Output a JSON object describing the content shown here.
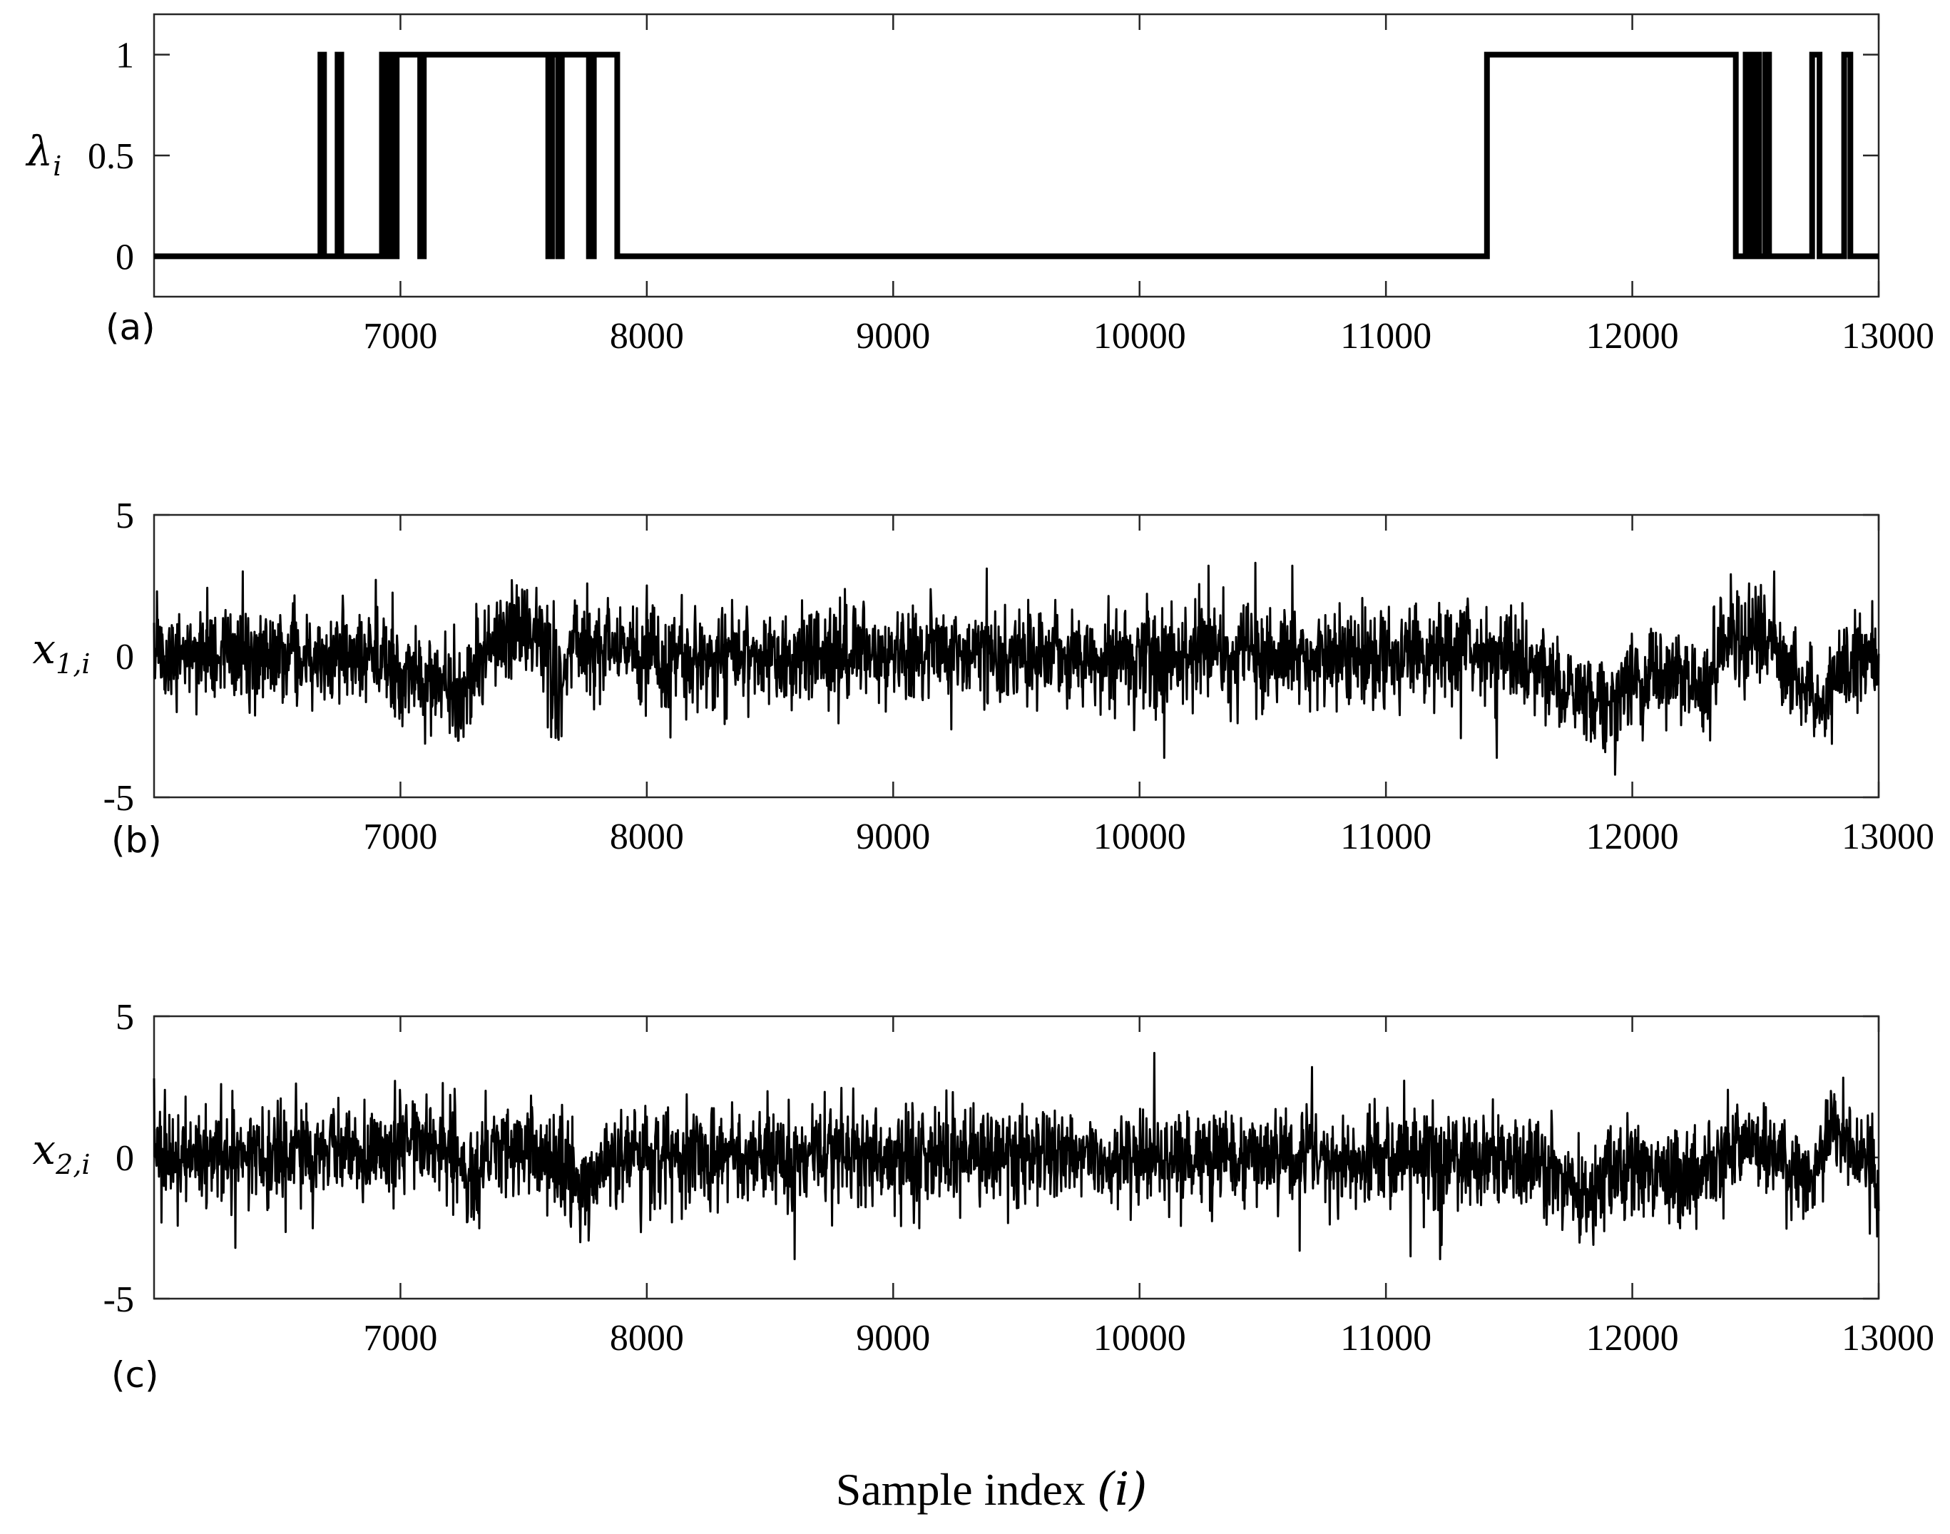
{
  "chart_data": [
    {
      "type": "line",
      "panel_label": "(a)",
      "ylabel_base": "λ",
      "ylabel_sub": "i",
      "xlim": [
        6000,
        13000
      ],
      "ylim": [
        -0.2,
        1.2
      ],
      "xticks": [
        7000,
        8000,
        9000,
        10000,
        11000,
        12000,
        13000
      ],
      "yticks": [
        0,
        0.5,
        1
      ],
      "ytick_labels": [
        "0",
        "0.5",
        "1"
      ],
      "xtick_labels": [
        "7000",
        "8000",
        "9000",
        "10000",
        "11000",
        "12000",
        "13000"
      ],
      "line_color": "#000000",
      "series": [
        {
          "x": [
            6000,
            6675,
            6675,
            6690,
            6690,
            6745,
            6745,
            6760,
            6760,
            6925,
            6925,
            6935,
            6935,
            6945,
            6945,
            6965,
            6965,
            6985,
            6985,
            7080,
            7080,
            7095,
            7095,
            7600,
            7600,
            7615,
            7615,
            7640,
            7640,
            7655,
            7655,
            7765,
            7765,
            7785,
            7785,
            7880,
            7880,
            11410,
            11410,
            12420,
            12420,
            12460,
            12460,
            12480,
            12480,
            12500,
            12500,
            12515,
            12515,
            12540,
            12540,
            12555,
            12555,
            12730,
            12730,
            12760,
            12760,
            12860,
            12860,
            12885,
            12885,
            13000
          ],
          "y": [
            0,
            0,
            1,
            1,
            0,
            0,
            1,
            1,
            0,
            0,
            1,
            1,
            0,
            0,
            1,
            1,
            0,
            0,
            1,
            1,
            0,
            0,
            1,
            1,
            0,
            0,
            1,
            1,
            0,
            0,
            1,
            1,
            0,
            0,
            1,
            1,
            0,
            0,
            1,
            1,
            0,
            0,
            1,
            1,
            0,
            0,
            1,
            1,
            0,
            0,
            1,
            1,
            0,
            0,
            1,
            1,
            0,
            0,
            1,
            1,
            0,
            0
          ]
        }
      ]
    },
    {
      "type": "line",
      "panel_label": "(b)",
      "ylabel_base": "x",
      "ylabel_sub": "1,i",
      "xlim": [
        6000,
        13000
      ],
      "ylim": [
        -5,
        5
      ],
      "xticks": [
        7000,
        8000,
        9000,
        10000,
        11000,
        12000,
        13000
      ],
      "yticks": [
        -5,
        0,
        5
      ],
      "ytick_labels": [
        "-5",
        "0",
        "5"
      ],
      "xtick_labels": [
        "7000",
        "8000",
        "9000",
        "10000",
        "11000",
        "12000",
        "13000"
      ],
      "line_color": "#000000",
      "noise_level": 0.85,
      "trend": [
        [
          6000,
          0.1
        ],
        [
          6900,
          0.0
        ],
        [
          7000,
          -0.9
        ],
        [
          7100,
          -0.6
        ],
        [
          7250,
          -1.4
        ],
        [
          7350,
          0.2
        ],
        [
          7450,
          0.7
        ],
        [
          7550,
          1.1
        ],
        [
          7640,
          -1.2
        ],
        [
          7700,
          0.3
        ],
        [
          7800,
          0.6
        ],
        [
          7880,
          0.0
        ],
        [
          11400,
          0.0
        ],
        [
          11600,
          -0.4
        ],
        [
          11900,
          -1.8
        ],
        [
          12050,
          -0.6
        ],
        [
          12250,
          -1.0
        ],
        [
          12300,
          -1.6
        ],
        [
          12350,
          0.3
        ],
        [
          12500,
          1.1
        ],
        [
          12650,
          -0.6
        ],
        [
          12750,
          -1.6
        ],
        [
          12850,
          -0.4
        ],
        [
          13000,
          -0.2
        ]
      ],
      "extremes": [
        [
          6360,
          3.0
        ],
        [
          6900,
          2.7
        ],
        [
          7100,
          -3.1
        ],
        [
          8000,
          2.5
        ],
        [
          9380,
          3.1
        ],
        [
          10100,
          -3.6
        ],
        [
          10280,
          3.2
        ],
        [
          10470,
          3.3
        ],
        [
          10620,
          3.2
        ],
        [
          11450,
          -3.6
        ],
        [
          11890,
          -3.4
        ],
        [
          12400,
          2.9
        ]
      ]
    },
    {
      "type": "line",
      "panel_label": "(c)",
      "ylabel_base": "x",
      "ylabel_sub": "2,i",
      "xlim": [
        6000,
        13000
      ],
      "ylim": [
        -5,
        5
      ],
      "xticks": [
        7000,
        8000,
        9000,
        10000,
        11000,
        12000,
        13000
      ],
      "yticks": [
        -5,
        0,
        5
      ],
      "ytick_labels": [
        "-5",
        "0",
        "5"
      ],
      "xtick_labels": [
        "7000",
        "8000",
        "9000",
        "10000",
        "11000",
        "12000",
        "13000"
      ],
      "line_color": "#000000",
      "noise_level": 0.85,
      "trend": [
        [
          6000,
          0.0
        ],
        [
          6950,
          0.2
        ],
        [
          7050,
          0.7
        ],
        [
          7200,
          0.3
        ],
        [
          7300,
          -1.4
        ],
        [
          7350,
          0.3
        ],
        [
          7500,
          0.5
        ],
        [
          7650,
          -0.4
        ],
        [
          7750,
          -1.0
        ],
        [
          7850,
          0.1
        ],
        [
          11400,
          0.0
        ],
        [
          11600,
          -0.2
        ],
        [
          11800,
          -1.4
        ],
        [
          11900,
          -0.4
        ],
        [
          12100,
          -0.5
        ],
        [
          12300,
          -0.6
        ],
        [
          12450,
          0.4
        ],
        [
          12600,
          -0.1
        ],
        [
          12700,
          -0.9
        ],
        [
          12800,
          0.8
        ],
        [
          12900,
          0.2
        ],
        [
          13000,
          -0.8
        ]
      ],
      "extremes": [
        [
          6000,
          2.8
        ],
        [
          6330,
          -3.2
        ],
        [
          7730,
          -3.0
        ],
        [
          8600,
          -3.6
        ],
        [
          10060,
          3.7
        ],
        [
          10650,
          -3.3
        ],
        [
          10700,
          3.2
        ],
        [
          11100,
          -3.5
        ],
        [
          11220,
          -3.6
        ],
        [
          13000,
          -1.9
        ]
      ]
    }
  ],
  "xlabel": "Sample index (i)",
  "xlabel_text": "Sample index ",
  "xlabel_var": "(i)"
}
